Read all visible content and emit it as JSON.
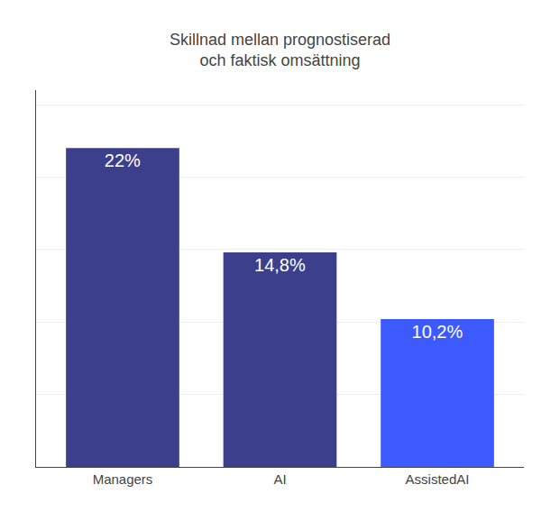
{
  "chart_data": {
    "type": "bar",
    "title": "Skillnad mellan prognostiserad\noch faktisk omsättning",
    "categories": [
      "Managers",
      "AI",
      "AssistedAI"
    ],
    "values": [
      22,
      14.8,
      10.2
    ],
    "value_labels": [
      "22%",
      "14,8%",
      "10,2%"
    ],
    "colors": [
      "#3b3f8c",
      "#3b3f8c",
      "#3d5afe"
    ],
    "ylim": [
      0,
      26
    ],
    "yticks": [
      5,
      10,
      15,
      20,
      25
    ],
    "grid": true,
    "data_labels": true,
    "tick_labels": "x"
  }
}
